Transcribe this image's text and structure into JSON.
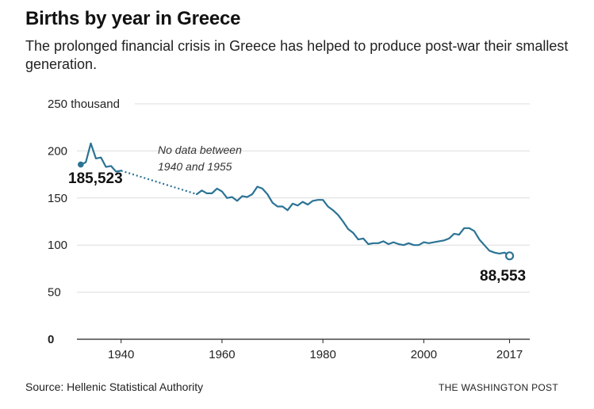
{
  "header": {
    "title": "Births by year in Greece",
    "subtitle": "The prolonged financial crisis in Greece has helped to produce post-war their smallest generation."
  },
  "chart_data": {
    "type": "line",
    "title": "Births by year in Greece",
    "subtitle": "The prolonged financial crisis in Greece has helped to produce post-war their smallest generation.",
    "xlabel": "",
    "ylabel": "",
    "xlim": [
      1927,
      2021
    ],
    "ylim": [
      0,
      250
    ],
    "x_ticks": [
      1940,
      1960,
      1980,
      2000,
      2017
    ],
    "x_tick_labels": [
      "1940",
      "1960",
      "1980",
      "2000",
      "2017"
    ],
    "y_ticks": [
      0,
      50,
      100,
      150,
      200,
      250
    ],
    "y_tick_labels": [
      "0",
      "50",
      "100",
      "150",
      "200",
      "250 thousand"
    ],
    "grid": true,
    "line_color": "#2b7394",
    "gap_style": "dotted",
    "series": [
      {
        "segment": "pre-war",
        "x": [
          1932,
          1933,
          1934,
          1935,
          1936,
          1937,
          1938,
          1939,
          1940
        ],
        "y": [
          185.523,
          188,
          208,
          192,
          193,
          183,
          184,
          178,
          179
        ]
      },
      {
        "segment": "post-war",
        "x": [
          1955,
          1956,
          1957,
          1958,
          1959,
          1960,
          1961,
          1962,
          1963,
          1964,
          1965,
          1966,
          1967,
          1968,
          1969,
          1970,
          1971,
          1972,
          1973,
          1974,
          1975,
          1976,
          1977,
          1978,
          1979,
          1980,
          1981,
          1982,
          1983,
          1984,
          1985,
          1986,
          1987,
          1988,
          1989,
          1990,
          1991,
          1992,
          1993,
          1994,
          1995,
          1996,
          1997,
          1998,
          1999,
          2000,
          2001,
          2002,
          2003,
          2004,
          2005,
          2006,
          2007,
          2008,
          2009,
          2010,
          2011,
          2012,
          2013,
          2014,
          2015,
          2016,
          2017
        ],
        "y": [
          154,
          158,
          155,
          155,
          160,
          157,
          150,
          151,
          147,
          152,
          151,
          154,
          162,
          160,
          154,
          145,
          141,
          141,
          137,
          144,
          142,
          146,
          143,
          147,
          148,
          148,
          141,
          137,
          132,
          125,
          117,
          113,
          106,
          107,
          101,
          102,
          102,
          104,
          101,
          103,
          101,
          100,
          102,
          100,
          100,
          103,
          102,
          103,
          104,
          105,
          107,
          112,
          111,
          118,
          118,
          115,
          106,
          100,
          94,
          92,
          91,
          92,
          88.553
        ]
      }
    ],
    "annotations": {
      "start_value": "185,523",
      "end_value": "88,553",
      "gap_note_line1": "No data between",
      "gap_note_line2": "1940 and 1955"
    }
  },
  "footer": {
    "source": "Source: Hellenic Statistical Authority",
    "brand": "THE WASHINGTON POST"
  }
}
